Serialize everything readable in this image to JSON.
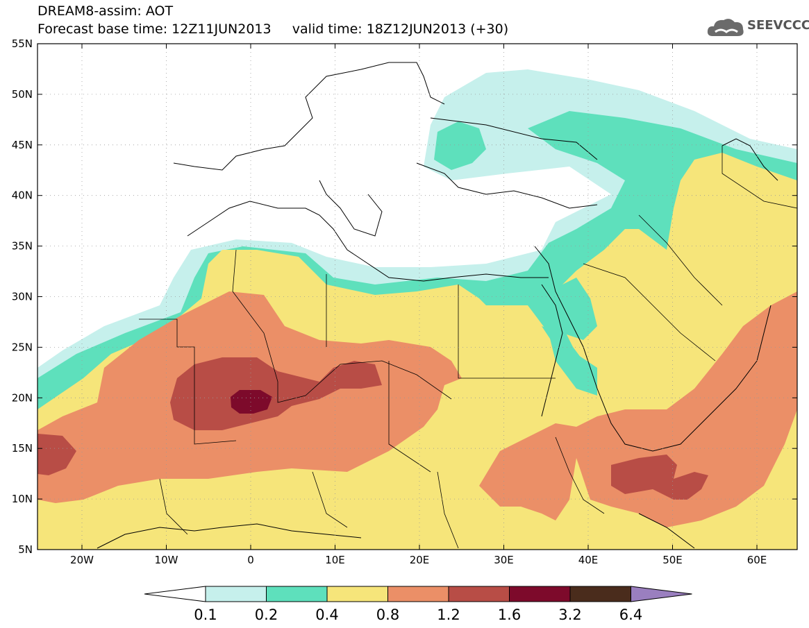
{
  "header": {
    "title": "DREAM8-assim: AOT",
    "base_time_label": "Forecast base time: 12Z11JUN2013",
    "valid_time_label": "valid time: 18Z12JUN2013 (+30)"
  },
  "logo": {
    "text": "SEEVCCC",
    "icon": "cloud-icon"
  },
  "map": {
    "lat_labels": [
      "55N",
      "50N",
      "45N",
      "40N",
      "35N",
      "30N",
      "25N",
      "20N",
      "15N",
      "10N",
      "5N"
    ],
    "lon_labels": [
      "20W",
      "10W",
      "0",
      "10E",
      "20E",
      "30E",
      "40E",
      "50E",
      "60E"
    ]
  },
  "legend": {
    "levels": [
      "0.1",
      "0.2",
      "0.4",
      "0.8",
      "1.2",
      "1.6",
      "3.2",
      "6.4"
    ],
    "colors": [
      "#c6f0ec",
      "#5ee0bc",
      "#f6e57a",
      "#eb8f67",
      "#b84d46",
      "#7d0a2b",
      "#4a2c1c",
      "#9a7fbf"
    ]
  }
}
